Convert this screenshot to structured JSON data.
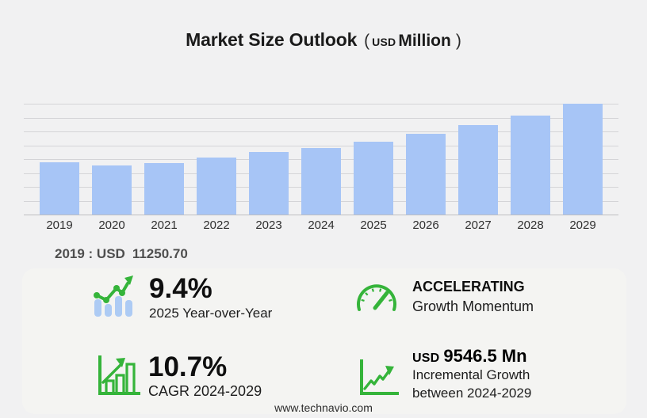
{
  "page": {
    "background": "#f1f1f2",
    "panel_background": "#f4f4f2"
  },
  "title": {
    "main": "Market Size Outlook",
    "open": "(",
    "currency": "USD",
    "unit": "Million",
    "close": ")"
  },
  "annotation": {
    "label": "2019 : USD",
    "value": "11250.70"
  },
  "chart_data": {
    "type": "bar",
    "title": "Market Size Outlook (USD Million)",
    "xlabel": "",
    "ylabel": "USD Million",
    "categories": [
      "2019",
      "2020",
      "2021",
      "2022",
      "2023",
      "2024",
      "2025",
      "2026",
      "2027",
      "2028",
      "2029"
    ],
    "values": [
      11250.7,
      10560.2,
      11079.8,
      12288.4,
      13501.6,
      14399.3,
      15752.8,
      17478.5,
      19388.6,
      21462.9,
      23945.8
    ],
    "ylim": [
      0,
      24000
    ],
    "gridline_interval": 3000,
    "grid": true,
    "legend": false,
    "bar_color": "#a7c5f6",
    "gridline_color": "#d4d4d7",
    "baseline_color": "#bdbdc1"
  },
  "stats": {
    "yoy": {
      "icon": "trend-bars-icon",
      "value": "9.4%",
      "label": "2025 Year-over-Year"
    },
    "momentum": {
      "icon": "gauge-icon",
      "value": "ACCELERATING",
      "label": "Growth Momentum"
    },
    "cagr": {
      "icon": "bar-growth-icon",
      "value": "10.7%",
      "label": "CAGR 2024-2029"
    },
    "incremental": {
      "icon": "line-growth-icon",
      "currency": "USD",
      "value": "9546.5 Mn",
      "label": "Incremental Growth",
      "label2": "between 2024-2029"
    }
  },
  "footer": {
    "url": "www.technavio.com"
  },
  "colors": {
    "accent_green": "#35b43a",
    "bar_blue": "#a7c5f6",
    "icon_bar_blue": "#adcbf4",
    "text_dark": "#1b1b1b",
    "annotation_gray": "#4e4e4e"
  }
}
